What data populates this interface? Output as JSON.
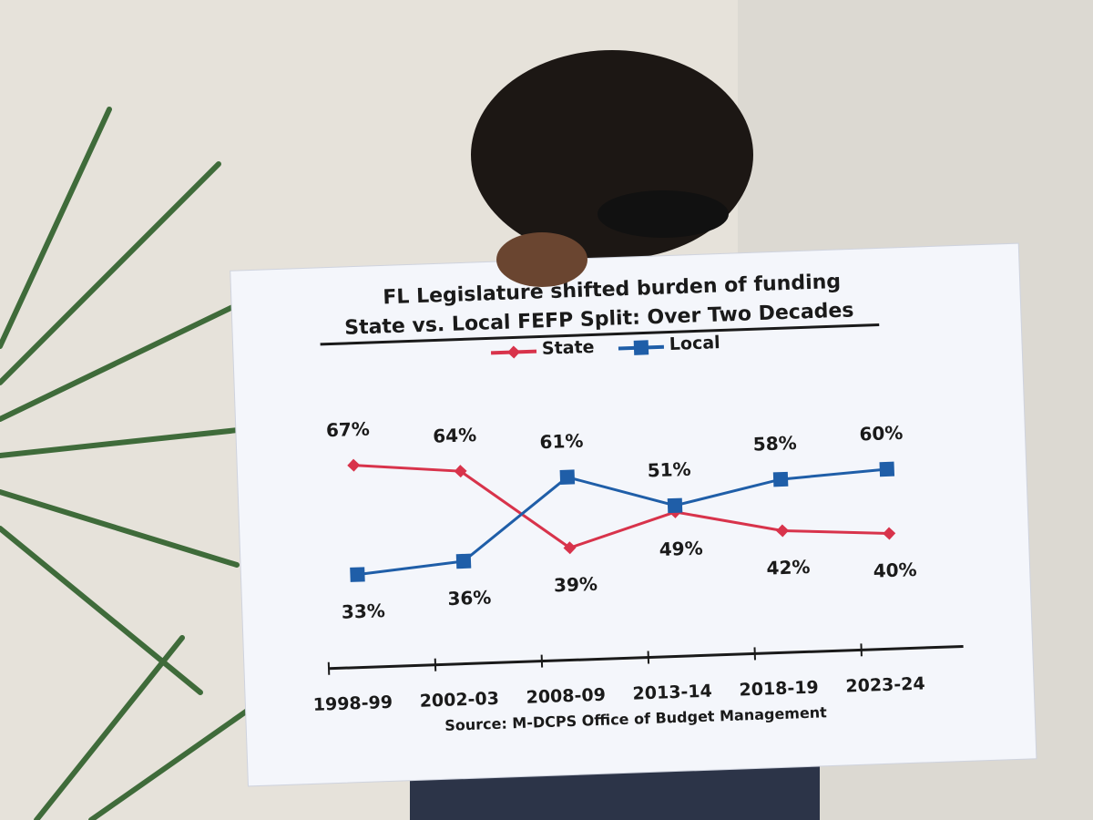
{
  "chart_data": {
    "type": "line",
    "title": "FL Legislature shifted burden of funding",
    "subtitle": "State vs. Local FEFP Split: Over Two Decades",
    "categories": [
      "1998-99",
      "2002-03",
      "2008-09",
      "2013-14",
      "2018-19",
      "2023-24"
    ],
    "series": [
      {
        "name": "State",
        "color": "#d8334b",
        "marker": "diamond",
        "values": [
          67,
          64,
          39,
          49,
          42,
          40
        ],
        "value_labels": [
          "67%",
          "64%",
          "39%",
          "49%",
          "42%",
          "40%"
        ]
      },
      {
        "name": "Local",
        "color": "#1f5ea8",
        "marker": "square",
        "values": [
          33,
          36,
          61,
          51,
          58,
          60
        ],
        "value_labels": [
          "33%",
          "36%",
          "61%",
          "51%",
          "58%",
          "60%"
        ]
      }
    ],
    "source": "Source: M-DCPS Office of Budget Management"
  }
}
